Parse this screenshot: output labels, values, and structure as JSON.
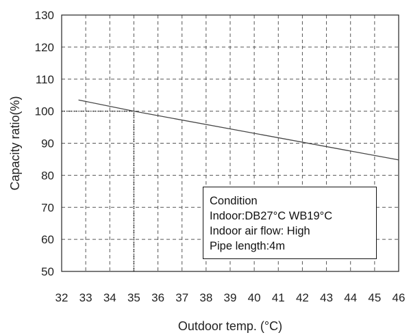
{
  "chart_data": {
    "type": "line",
    "title": "",
    "xlabel": "Outdoor temp. (°C)",
    "ylabel": "Capacity ratio(%)",
    "xlim": [
      32,
      46
    ],
    "ylim": [
      50,
      130
    ],
    "xticks": [
      32,
      33,
      34,
      35,
      36,
      37,
      38,
      39,
      40,
      41,
      42,
      43,
      44,
      45,
      46
    ],
    "yticks": [
      50,
      60,
      70,
      80,
      90,
      100,
      110,
      120,
      130
    ],
    "grid": true,
    "grid_style": "dashed",
    "series": [
      {
        "x": [
          32.7,
          35,
          46
        ],
        "y": [
          103.5,
          100,
          84.8
        ],
        "color": "#444444"
      }
    ],
    "reference_lines": [
      {
        "x": [
          32,
          35
        ],
        "y": [
          100,
          100
        ],
        "style": "dotted"
      },
      {
        "x": [
          35,
          35
        ],
        "y": [
          50,
          100
        ],
        "style": "dotted"
      }
    ]
  },
  "condition_box": {
    "lines": [
      "Condition",
      "Indoor:DB27°C WB19°C",
      "Indoor air flow: High",
      "Pipe length:4m"
    ]
  }
}
